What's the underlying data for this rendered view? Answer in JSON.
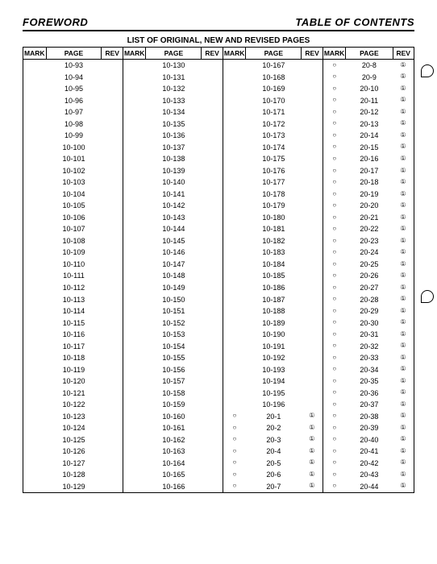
{
  "header": {
    "left": "FOREWORD",
    "right": "TABLE OF CONTENTS"
  },
  "title": "LIST OF ORIGINAL, NEW AND REVISED PAGES",
  "columns": [
    "MARK",
    "PAGE",
    "REV"
  ],
  "table": {
    "type": "table",
    "num_groups": 4,
    "num_rows": 37,
    "header_bg": "#ffffff",
    "border_color": "#000000",
    "font_size_header": 8.5,
    "font_size_body": 9,
    "rows": [
      {
        "g1": {
          "mark": "",
          "page": "10-93",
          "rev": ""
        },
        "g2": {
          "mark": "",
          "page": "10-130",
          "rev": ""
        },
        "g3": {
          "mark": "",
          "page": "10-167",
          "rev": ""
        },
        "g4": {
          "mark": "○",
          "page": "20-8",
          "rev": "①"
        }
      },
      {
        "g1": {
          "mark": "",
          "page": "10-94",
          "rev": ""
        },
        "g2": {
          "mark": "",
          "page": "10-131",
          "rev": ""
        },
        "g3": {
          "mark": "",
          "page": "10-168",
          "rev": ""
        },
        "g4": {
          "mark": "○",
          "page": "20-9",
          "rev": "①"
        }
      },
      {
        "g1": {
          "mark": "",
          "page": "10-95",
          "rev": ""
        },
        "g2": {
          "mark": "",
          "page": "10-132",
          "rev": ""
        },
        "g3": {
          "mark": "",
          "page": "10-169",
          "rev": ""
        },
        "g4": {
          "mark": "○",
          "page": "20-10",
          "rev": "①"
        }
      },
      {
        "g1": {
          "mark": "",
          "page": "10-96",
          "rev": ""
        },
        "g2": {
          "mark": "",
          "page": "10-133",
          "rev": ""
        },
        "g3": {
          "mark": "",
          "page": "10-170",
          "rev": ""
        },
        "g4": {
          "mark": "○",
          "page": "20-11",
          "rev": "①"
        }
      },
      {
        "g1": {
          "mark": "",
          "page": "10-97",
          "rev": ""
        },
        "g2": {
          "mark": "",
          "page": "10-134",
          "rev": ""
        },
        "g3": {
          "mark": "",
          "page": "10-171",
          "rev": ""
        },
        "g4": {
          "mark": "○",
          "page": "20-12",
          "rev": "①"
        }
      },
      {
        "g1": {
          "mark": "",
          "page": "10-98",
          "rev": ""
        },
        "g2": {
          "mark": "",
          "page": "10-135",
          "rev": ""
        },
        "g3": {
          "mark": "",
          "page": "10-172",
          "rev": ""
        },
        "g4": {
          "mark": "○",
          "page": "20-13",
          "rev": "①"
        }
      },
      {
        "g1": {
          "mark": "",
          "page": "10-99",
          "rev": ""
        },
        "g2": {
          "mark": "",
          "page": "10-136",
          "rev": ""
        },
        "g3": {
          "mark": "",
          "page": "10-173",
          "rev": ""
        },
        "g4": {
          "mark": "○",
          "page": "20-14",
          "rev": "①"
        }
      },
      {
        "g1": {
          "mark": "",
          "page": "10-100",
          "rev": ""
        },
        "g2": {
          "mark": "",
          "page": "10-137",
          "rev": ""
        },
        "g3": {
          "mark": "",
          "page": "10-174",
          "rev": ""
        },
        "g4": {
          "mark": "○",
          "page": "20-15",
          "rev": "①"
        }
      },
      {
        "g1": {
          "mark": "",
          "page": "10-101",
          "rev": ""
        },
        "g2": {
          "mark": "",
          "page": "10-138",
          "rev": ""
        },
        "g3": {
          "mark": "",
          "page": "10-175",
          "rev": ""
        },
        "g4": {
          "mark": "○",
          "page": "20-16",
          "rev": "①"
        }
      },
      {
        "g1": {
          "mark": "",
          "page": "10-102",
          "rev": ""
        },
        "g2": {
          "mark": "",
          "page": "10-139",
          "rev": ""
        },
        "g3": {
          "mark": "",
          "page": "10-176",
          "rev": ""
        },
        "g4": {
          "mark": "○",
          "page": "20-17",
          "rev": "①"
        }
      },
      {
        "g1": {
          "mark": "",
          "page": "10-103",
          "rev": ""
        },
        "g2": {
          "mark": "",
          "page": "10-140",
          "rev": ""
        },
        "g3": {
          "mark": "",
          "page": "10-177",
          "rev": ""
        },
        "g4": {
          "mark": "○",
          "page": "20-18",
          "rev": "①"
        }
      },
      {
        "g1": {
          "mark": "",
          "page": "10-104",
          "rev": ""
        },
        "g2": {
          "mark": "",
          "page": "10-141",
          "rev": ""
        },
        "g3": {
          "mark": "",
          "page": "10-178",
          "rev": ""
        },
        "g4": {
          "mark": "○",
          "page": "20-19",
          "rev": "①"
        }
      },
      {
        "g1": {
          "mark": "",
          "page": "10-105",
          "rev": ""
        },
        "g2": {
          "mark": "",
          "page": "10-142",
          "rev": ""
        },
        "g3": {
          "mark": "",
          "page": "10-179",
          "rev": ""
        },
        "g4": {
          "mark": "○",
          "page": "20-20",
          "rev": "①"
        }
      },
      {
        "g1": {
          "mark": "",
          "page": "10-106",
          "rev": ""
        },
        "g2": {
          "mark": "",
          "page": "10-143",
          "rev": ""
        },
        "g3": {
          "mark": "",
          "page": "10-180",
          "rev": ""
        },
        "g4": {
          "mark": "○",
          "page": "20-21",
          "rev": "①"
        }
      },
      {
        "g1": {
          "mark": "",
          "page": "10-107",
          "rev": ""
        },
        "g2": {
          "mark": "",
          "page": "10-144",
          "rev": ""
        },
        "g3": {
          "mark": "",
          "page": "10-181",
          "rev": ""
        },
        "g4": {
          "mark": "○",
          "page": "20-22",
          "rev": "①"
        }
      },
      {
        "g1": {
          "mark": "",
          "page": "10-108",
          "rev": ""
        },
        "g2": {
          "mark": "",
          "page": "10-145",
          "rev": ""
        },
        "g3": {
          "mark": "",
          "page": "10-182",
          "rev": ""
        },
        "g4": {
          "mark": "○",
          "page": "20-23",
          "rev": "①"
        }
      },
      {
        "g1": {
          "mark": "",
          "page": "10-109",
          "rev": ""
        },
        "g2": {
          "mark": "",
          "page": "10-146",
          "rev": ""
        },
        "g3": {
          "mark": "",
          "page": "10-183",
          "rev": ""
        },
        "g4": {
          "mark": "○",
          "page": "20-24",
          "rev": "①"
        }
      },
      {
        "g1": {
          "mark": "",
          "page": "10-110",
          "rev": ""
        },
        "g2": {
          "mark": "",
          "page": "10-147",
          "rev": ""
        },
        "g3": {
          "mark": "",
          "page": "10-184",
          "rev": ""
        },
        "g4": {
          "mark": "○",
          "page": "20-25",
          "rev": "①"
        }
      },
      {
        "g1": {
          "mark": "",
          "page": "10-111",
          "rev": ""
        },
        "g2": {
          "mark": "",
          "page": "10-148",
          "rev": ""
        },
        "g3": {
          "mark": "",
          "page": "10-185",
          "rev": ""
        },
        "g4": {
          "mark": "○",
          "page": "20-26",
          "rev": "①"
        }
      },
      {
        "g1": {
          "mark": "",
          "page": "10-112",
          "rev": ""
        },
        "g2": {
          "mark": "",
          "page": "10-149",
          "rev": ""
        },
        "g3": {
          "mark": "",
          "page": "10-186",
          "rev": ""
        },
        "g4": {
          "mark": "○",
          "page": "20-27",
          "rev": "①"
        }
      },
      {
        "g1": {
          "mark": "",
          "page": "10-113",
          "rev": ""
        },
        "g2": {
          "mark": "",
          "page": "10-150",
          "rev": ""
        },
        "g3": {
          "mark": "",
          "page": "10-187",
          "rev": ""
        },
        "g4": {
          "mark": "○",
          "page": "20-28",
          "rev": "①"
        }
      },
      {
        "g1": {
          "mark": "",
          "page": "10-114",
          "rev": ""
        },
        "g2": {
          "mark": "",
          "page": "10-151",
          "rev": ""
        },
        "g3": {
          "mark": "",
          "page": "10-188",
          "rev": ""
        },
        "g4": {
          "mark": "○",
          "page": "20-29",
          "rev": "①"
        }
      },
      {
        "g1": {
          "mark": "",
          "page": "10-115",
          "rev": ""
        },
        "g2": {
          "mark": "",
          "page": "10-152",
          "rev": ""
        },
        "g3": {
          "mark": "",
          "page": "10-189",
          "rev": ""
        },
        "g4": {
          "mark": "○",
          "page": "20-30",
          "rev": "①"
        }
      },
      {
        "g1": {
          "mark": "",
          "page": "10-116",
          "rev": ""
        },
        "g2": {
          "mark": "",
          "page": "10-153",
          "rev": ""
        },
        "g3": {
          "mark": "",
          "page": "10-190",
          "rev": ""
        },
        "g4": {
          "mark": "○",
          "page": "20-31",
          "rev": "①"
        }
      },
      {
        "g1": {
          "mark": "",
          "page": "10-117",
          "rev": ""
        },
        "g2": {
          "mark": "",
          "page": "10-154",
          "rev": ""
        },
        "g3": {
          "mark": "",
          "page": "10-191",
          "rev": ""
        },
        "g4": {
          "mark": "○",
          "page": "20-32",
          "rev": "①"
        }
      },
      {
        "g1": {
          "mark": "",
          "page": "10-118",
          "rev": ""
        },
        "g2": {
          "mark": "",
          "page": "10-155",
          "rev": ""
        },
        "g3": {
          "mark": "",
          "page": "10-192",
          "rev": ""
        },
        "g4": {
          "mark": "○",
          "page": "20-33",
          "rev": "①"
        }
      },
      {
        "g1": {
          "mark": "",
          "page": "10-119",
          "rev": ""
        },
        "g2": {
          "mark": "",
          "page": "10-156",
          "rev": ""
        },
        "g3": {
          "mark": "",
          "page": "10-193",
          "rev": ""
        },
        "g4": {
          "mark": "○",
          "page": "20-34",
          "rev": "①"
        }
      },
      {
        "g1": {
          "mark": "",
          "page": "10-120",
          "rev": ""
        },
        "g2": {
          "mark": "",
          "page": "10-157",
          "rev": ""
        },
        "g3": {
          "mark": "",
          "page": "10-194",
          "rev": ""
        },
        "g4": {
          "mark": "○",
          "page": "20-35",
          "rev": "①"
        }
      },
      {
        "g1": {
          "mark": "",
          "page": "10-121",
          "rev": ""
        },
        "g2": {
          "mark": "",
          "page": "10-158",
          "rev": ""
        },
        "g3": {
          "mark": "",
          "page": "10-195",
          "rev": ""
        },
        "g4": {
          "mark": "○",
          "page": "20-36",
          "rev": "①"
        }
      },
      {
        "g1": {
          "mark": "",
          "page": "10-122",
          "rev": ""
        },
        "g2": {
          "mark": "",
          "page": "10-159",
          "rev": ""
        },
        "g3": {
          "mark": "",
          "page": "10-196",
          "rev": ""
        },
        "g4": {
          "mark": "○",
          "page": "20-37",
          "rev": "①"
        }
      },
      {
        "g1": {
          "mark": "",
          "page": "10-123",
          "rev": ""
        },
        "g2": {
          "mark": "",
          "page": "10-160",
          "rev": ""
        },
        "g3": {
          "mark": "○",
          "page": "20-1",
          "rev": "①"
        },
        "g4": {
          "mark": "○",
          "page": "20-38",
          "rev": "①"
        }
      },
      {
        "g1": {
          "mark": "",
          "page": "10-124",
          "rev": ""
        },
        "g2": {
          "mark": "",
          "page": "10-161",
          "rev": ""
        },
        "g3": {
          "mark": "○",
          "page": "20-2",
          "rev": "①"
        },
        "g4": {
          "mark": "○",
          "page": "20-39",
          "rev": "①"
        }
      },
      {
        "g1": {
          "mark": "",
          "page": "10-125",
          "rev": ""
        },
        "g2": {
          "mark": "",
          "page": "10-162",
          "rev": ""
        },
        "g3": {
          "mark": "○",
          "page": "20-3",
          "rev": "①"
        },
        "g4": {
          "mark": "○",
          "page": "20-40",
          "rev": "①"
        }
      },
      {
        "g1": {
          "mark": "",
          "page": "10-126",
          "rev": ""
        },
        "g2": {
          "mark": "",
          "page": "10-163",
          "rev": ""
        },
        "g3": {
          "mark": "○",
          "page": "20-4",
          "rev": "①"
        },
        "g4": {
          "mark": "○",
          "page": "20-41",
          "rev": "①"
        }
      },
      {
        "g1": {
          "mark": "",
          "page": "10-127",
          "rev": ""
        },
        "g2": {
          "mark": "",
          "page": "10-164",
          "rev": ""
        },
        "g3": {
          "mark": "○",
          "page": "20-5",
          "rev": "①"
        },
        "g4": {
          "mark": "○",
          "page": "20-42",
          "rev": "①"
        }
      },
      {
        "g1": {
          "mark": "",
          "page": "10-128",
          "rev": ""
        },
        "g2": {
          "mark": "",
          "page": "10-165",
          "rev": ""
        },
        "g3": {
          "mark": "○",
          "page": "20-6",
          "rev": "①"
        },
        "g4": {
          "mark": "○",
          "page": "20-43",
          "rev": "①"
        }
      },
      {
        "g1": {
          "mark": "",
          "page": "10-129",
          "rev": ""
        },
        "g2": {
          "mark": "",
          "page": "10-166",
          "rev": ""
        },
        "g3": {
          "mark": "○",
          "page": "20-7",
          "rev": "①"
        },
        "g4": {
          "mark": "○",
          "page": "20-44",
          "rev": "①"
        }
      }
    ]
  }
}
